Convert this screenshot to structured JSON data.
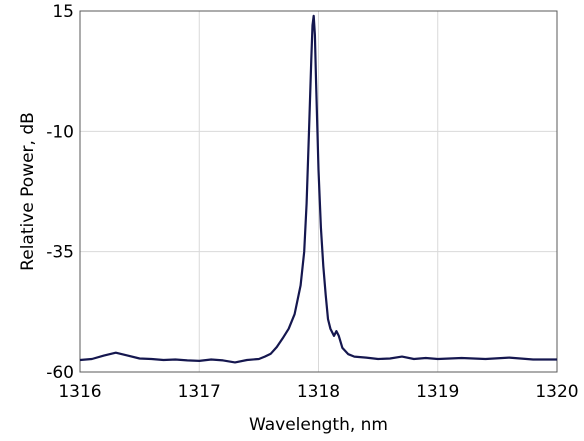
{
  "chart_data": {
    "type": "line",
    "title": "",
    "xlabel": "Wavelength, nm",
    "ylabel": "Relative Power, dB",
    "xlim": [
      1316,
      1320
    ],
    "ylim": [
      -60,
      15
    ],
    "x_ticks": [
      1316,
      1317,
      1318,
      1319,
      1320
    ],
    "y_ticks": [
      15,
      -10,
      -35,
      -60
    ],
    "x_tick_labels": [
      "1316",
      "1317",
      "1318",
      "1319",
      "1320"
    ],
    "y_tick_labels": [
      "15",
      "-10",
      "-35",
      "-60"
    ],
    "grid": true,
    "legend": "none",
    "line_color": "#15174f",
    "grid_color": "#d9d9d9",
    "series": [
      {
        "x": [
          1316.0,
          1316.1,
          1316.2,
          1316.3,
          1316.4,
          1316.5,
          1316.6,
          1316.7,
          1316.8,
          1316.9,
          1317.0,
          1317.1,
          1317.2,
          1317.3,
          1317.4,
          1317.5,
          1317.55,
          1317.6,
          1317.65,
          1317.7,
          1317.75,
          1317.8,
          1317.85,
          1317.88,
          1317.9,
          1317.92,
          1317.94,
          1317.95,
          1317.96,
          1317.97,
          1317.98,
          1318.0,
          1318.02,
          1318.04,
          1318.06,
          1318.08,
          1318.1,
          1318.13,
          1318.15,
          1318.17,
          1318.2,
          1318.25,
          1318.3,
          1318.4,
          1318.5,
          1318.6,
          1318.7,
          1318.8,
          1318.9,
          1319.0,
          1319.2,
          1319.4,
          1319.6,
          1319.8,
          1320.0
        ],
        "y": [
          -57.5,
          -57.3,
          -56.6,
          -56.0,
          -56.6,
          -57.2,
          -57.3,
          -57.5,
          -57.4,
          -57.6,
          -57.7,
          -57.4,
          -57.6,
          -58.0,
          -57.5,
          -57.3,
          -56.8,
          -56.2,
          -54.8,
          -53.0,
          -51.0,
          -48.0,
          -42.0,
          -35.0,
          -25.0,
          -10.0,
          5.0,
          12.0,
          14.0,
          10.0,
          0.0,
          -18.0,
          -30.0,
          -38.0,
          -44.0,
          -49.0,
          -51.0,
          -52.5,
          -51.5,
          -52.5,
          -55.0,
          -56.3,
          -56.8,
          -57.0,
          -57.3,
          -57.2,
          -56.8,
          -57.3,
          -57.1,
          -57.3,
          -57.1,
          -57.3,
          -57.0,
          -57.4,
          -57.4
        ]
      }
    ]
  }
}
